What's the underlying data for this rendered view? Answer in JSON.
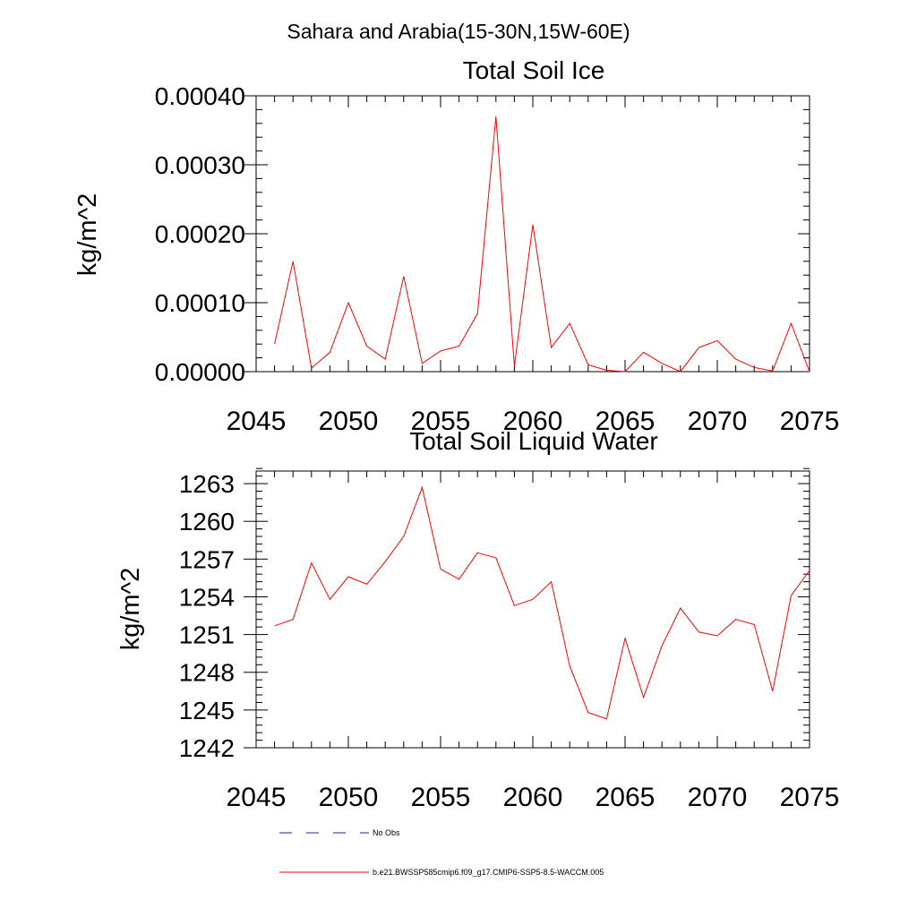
{
  "figure": {
    "title": "Sahara and Arabia(15-30N,15W-60E)",
    "legend": [
      {
        "label": "No Obs",
        "color": "#2a2a8a",
        "dash": true
      },
      {
        "label": "b.e21.BWSSP585cmip6.f09_g17.CMIP6-SSP5-8.5-WACCM.005",
        "color": "#ff0000",
        "dash": false
      }
    ]
  },
  "chart_data": [
    {
      "type": "line",
      "title": "Total Soil Ice",
      "ylabel": "kg/m^2",
      "xlabel": "",
      "xlim": [
        2045,
        2075
      ],
      "ylim": [
        0,
        0.0004
      ],
      "x_ticks": [
        "2045",
        "2050",
        "2055",
        "2060",
        "2065",
        "2070",
        "2075"
      ],
      "y_ticks": [
        "0.00000",
        "0.00010",
        "0.00020",
        "0.00030",
        "0.00040"
      ],
      "x": [
        2046,
        2047,
        2048,
        2049,
        2050,
        2051,
        2052,
        2053,
        2054,
        2055,
        2056,
        2057,
        2058,
        2059,
        2060,
        2061,
        2062,
        2063,
        2064,
        2065,
        2066,
        2067,
        2068,
        2069,
        2070,
        2071,
        2072,
        2073,
        2074,
        2075
      ],
      "series": [
        {
          "color": "#ff0000",
          "values": [
            4e-05,
            0.00016,
            5e-06,
            2.8e-05,
            0.0001,
            3.7e-05,
            1.8e-05,
            0.000138,
            1.2e-05,
            3e-05,
            3.7e-05,
            8.4e-05,
            0.00037,
            8e-06,
            0.000213,
            3.5e-05,
            7e-05,
            1e-05,
            2e-06,
            0.0,
            2.8e-05,
            1.2e-05,
            0.0,
            3.5e-05,
            4.5e-05,
            1.8e-05,
            6e-06,
            1e-06,
            7e-05,
            0.0
          ]
        }
      ]
    },
    {
      "type": "line",
      "title": "Total Soil Liquid Water",
      "ylabel": "kg/m^2",
      "xlabel": "",
      "xlim": [
        2045,
        2075
      ],
      "ylim": [
        1242,
        1264
      ],
      "x_ticks": [
        "2045",
        "2050",
        "2055",
        "2060",
        "2065",
        "2070",
        "2075"
      ],
      "y_ticks": [
        "1242",
        "1245",
        "1248",
        "1251",
        "1254",
        "1257",
        "1260",
        "1263"
      ],
      "x": [
        2046,
        2047,
        2048,
        2049,
        2050,
        2051,
        2052,
        2053,
        2054,
        2055,
        2056,
        2057,
        2058,
        2059,
        2060,
        2061,
        2062,
        2063,
        2064,
        2065,
        2066,
        2067,
        2068,
        2069,
        2070,
        2071,
        2072,
        2073,
        2074,
        2075
      ],
      "series": [
        {
          "color": "#ff0000",
          "values": [
            1251.7,
            1252.2,
            1256.7,
            1253.8,
            1255.6,
            1255.0,
            1256.8,
            1258.8,
            1262.7,
            1256.2,
            1255.4,
            1257.5,
            1257.1,
            1253.3,
            1253.8,
            1255.2,
            1248.5,
            1244.8,
            1244.3,
            1250.7,
            1246.0,
            1250.1,
            1253.1,
            1251.2,
            1250.9,
            1252.2,
            1251.8,
            1246.5,
            1254.1,
            1256.1
          ]
        }
      ]
    }
  ]
}
